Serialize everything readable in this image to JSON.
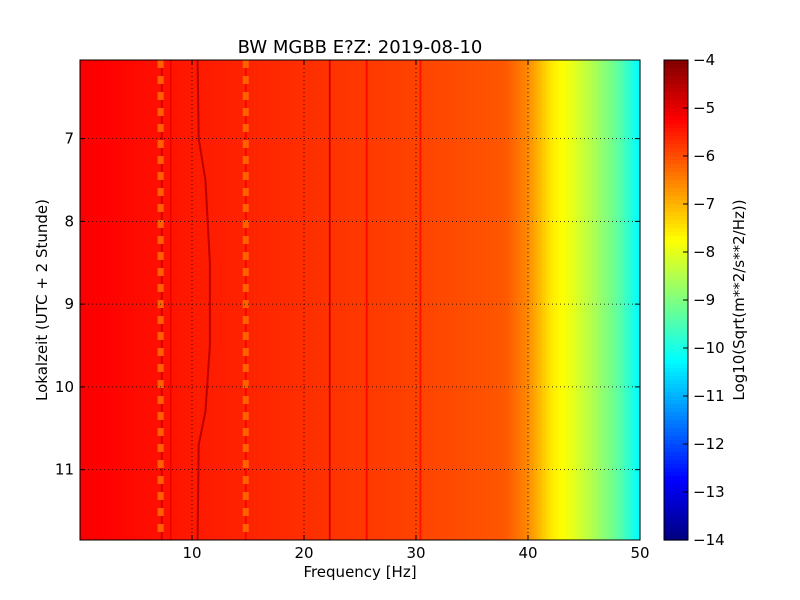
{
  "chart_data": {
    "type": "heatmap",
    "title": "BW MGBB E?Z: 2019-08-10",
    "xlabel": "Frequency [Hz]",
    "ylabel": "Lokalzeit (UTC + 2 Stunde)",
    "xlim": [
      0,
      50
    ],
    "ylim": [
      11.85,
      6.05
    ],
    "x_ticks": [
      10,
      20,
      30,
      40,
      50
    ],
    "y_ticks": [
      7,
      8,
      9,
      10,
      11
    ],
    "grid": true,
    "colormap": "jet",
    "colorbar": {
      "label": "Log10(Sqrt(m**2/s**2/Hz))",
      "range": [
        -14,
        -4
      ],
      "ticks": [
        -4,
        -5,
        -6,
        -7,
        -8,
        -9,
        -10,
        -11,
        -12,
        -13,
        -14
      ]
    },
    "level_by_frequency": [
      {
        "x": 0,
        "level": -5.2
      },
      {
        "x": 10,
        "level": -5.5
      },
      {
        "x": 20,
        "level": -5.7
      },
      {
        "x": 30,
        "level": -5.9
      },
      {
        "x": 38,
        "level": -6.1
      },
      {
        "x": 40,
        "level": -6.6
      },
      {
        "x": 42,
        "level": -7.5
      },
      {
        "x": 44,
        "level": -8.0
      },
      {
        "x": 46,
        "level": -8.6
      },
      {
        "x": 48,
        "level": -9.3
      },
      {
        "x": 50,
        "level": -10.3
      }
    ],
    "vertical_lines": [
      {
        "x": 7.3,
        "level": -4.7
      },
      {
        "x": 8.1,
        "level": -5.1
      },
      {
        "x": 14.8,
        "level": -5.2
      },
      {
        "x": 22.3,
        "level": -4.8
      },
      {
        "x": 25.6,
        "level": -5.3
      },
      {
        "x": 30.4,
        "level": -5.4
      }
    ],
    "banded_lines": [
      {
        "x": 7.2,
        "level": -6.2
      },
      {
        "x": 14.8,
        "level": -6.2
      }
    ],
    "wandering_line": [
      {
        "t": 6.05,
        "x": 10.5
      },
      {
        "t": 7.0,
        "x": 10.6
      },
      {
        "t": 7.5,
        "x": 11.2
      },
      {
        "t": 8.5,
        "x": 11.6
      },
      {
        "t": 9.5,
        "x": 11.6
      },
      {
        "t": 10.3,
        "x": 11.2
      },
      {
        "t": 10.7,
        "x": 10.6
      },
      {
        "t": 11.85,
        "x": 10.5
      }
    ]
  }
}
